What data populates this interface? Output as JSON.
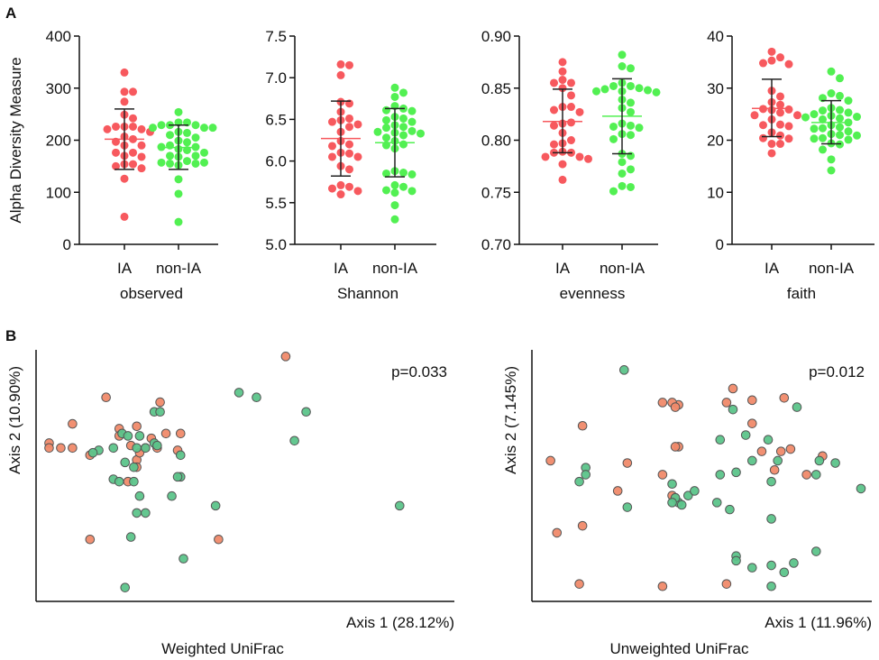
{
  "panel_labels": {
    "a": "A",
    "b": "B"
  },
  "colors": {
    "ia": "#f7595e",
    "nonia": "#52f052",
    "pcoa_ia": "#f08a6a",
    "pcoa_nonia": "#5cc48a",
    "axis": "#111111"
  },
  "chart_data": [
    {
      "type": "scatter",
      "title": "observed",
      "ylabel": "Alpha Diversity Measure",
      "categories": [
        "IA",
        "non-IA"
      ],
      "ylim": [
        0,
        400
      ],
      "yticks": [
        "0",
        "100",
        "200",
        "300",
        "400"
      ],
      "series": [
        {
          "name": "IA",
          "mean": 202,
          "sd_low": 144,
          "sd_high": 260,
          "values": [
            330,
            293,
            293,
            274,
            249,
            242,
            226,
            226,
            226,
            221,
            221,
            216,
            207,
            202,
            197,
            190,
            190,
            176,
            176,
            170,
            168,
            154,
            154,
            150,
            146,
            126,
            53
          ]
        },
        {
          "name": "non-IA",
          "mean": 186,
          "sd_low": 144,
          "sd_high": 229,
          "values": [
            254,
            234,
            234,
            229,
            229,
            229,
            224,
            224,
            224,
            216,
            214,
            210,
            205,
            199,
            196,
            190,
            187,
            187,
            183,
            181,
            176,
            170,
            170,
            168,
            160,
            157,
            157,
            155,
            155,
            152,
            125,
            97,
            43
          ]
        }
      ]
    },
    {
      "type": "scatter",
      "title": "Shannon",
      "categories": [
        "IA",
        "non-IA"
      ],
      "ylim": [
        5.0,
        7.5
      ],
      "yticks": [
        "5.0",
        "5.5",
        "6.0",
        "6.5",
        "7.0",
        "7.5"
      ],
      "series": [
        {
          "name": "IA",
          "mean": 6.27,
          "sd_low": 5.82,
          "sd_high": 6.72,
          "values": [
            7.16,
            7.15,
            7.03,
            6.71,
            6.69,
            6.59,
            6.51,
            6.49,
            6.47,
            6.44,
            6.41,
            6.35,
            6.24,
            6.2,
            6.18,
            6.1,
            6.09,
            6.05,
            6.05,
            5.94,
            5.9,
            5.71,
            5.69,
            5.67,
            5.64,
            5.6
          ]
        },
        {
          "name": "non-IA",
          "mean": 6.22,
          "sd_low": 5.81,
          "sd_high": 6.63,
          "values": [
            6.88,
            6.82,
            6.77,
            6.66,
            6.63,
            6.61,
            6.6,
            6.53,
            6.51,
            6.49,
            6.47,
            6.43,
            6.41,
            6.4,
            6.36,
            6.35,
            6.34,
            6.33,
            6.31,
            6.28,
            6.24,
            6.2,
            6.19,
            6.15,
            5.88,
            5.86,
            5.85,
            5.84,
            5.71,
            5.69,
            5.65,
            5.64,
            5.62,
            5.47,
            5.3
          ]
        }
      ]
    },
    {
      "type": "scatter",
      "title": "evenness",
      "categories": [
        "IA",
        "non-IA"
      ],
      "ylim": [
        0.7,
        0.9
      ],
      "yticks": [
        "0.70",
        "0.75",
        "0.80",
        "0.85",
        "0.90"
      ],
      "series": [
        {
          "name": "IA",
          "mean": 0.818,
          "sd_low": 0.788,
          "sd_high": 0.849,
          "values": [
            0.875,
            0.866,
            0.858,
            0.855,
            0.855,
            0.85,
            0.843,
            0.832,
            0.832,
            0.829,
            0.827,
            0.816,
            0.817,
            0.814,
            0.807,
            0.8,
            0.797,
            0.796,
            0.789,
            0.788,
            0.788,
            0.784,
            0.784,
            0.782,
            0.777,
            0.762
          ]
        },
        {
          "name": "non-IA",
          "mean": 0.823,
          "sd_low": 0.787,
          "sd_high": 0.859,
          "values": [
            0.882,
            0.871,
            0.869,
            0.855,
            0.852,
            0.852,
            0.85,
            0.849,
            0.848,
            0.847,
            0.847,
            0.846,
            0.839,
            0.836,
            0.831,
            0.827,
            0.816,
            0.814,
            0.813,
            0.812,
            0.806,
            0.805,
            0.801,
            0.787,
            0.785,
            0.779,
            0.772,
            0.768,
            0.756,
            0.755,
            0.751
          ]
        }
      ]
    },
    {
      "type": "scatter",
      "title": "faith",
      "categories": [
        "IA",
        "non-IA"
      ],
      "ylim": [
        0,
        40
      ],
      "yticks": [
        "0",
        "10",
        "20",
        "30",
        "40"
      ],
      "series": [
        {
          "name": "IA",
          "mean": 26.1,
          "sd_low": 20.7,
          "sd_high": 31.7,
          "values": [
            37.0,
            35.9,
            35.3,
            34.8,
            34.6,
            29.5,
            28.4,
            27.3,
            26.8,
            26.0,
            25.9,
            25.8,
            25.3,
            24.8,
            24.8,
            24.0,
            23.0,
            22.9,
            22.7,
            21.5,
            20.9,
            20.4,
            20.3,
            19.3,
            19.3,
            17.5
          ]
        },
        {
          "name": "non-IA",
          "mean": 23.4,
          "sd_low": 19.3,
          "sd_high": 27.6,
          "values": [
            33.2,
            31.9,
            29.0,
            28.5,
            28.1,
            27.6,
            26.2,
            25.8,
            25.7,
            25.3,
            25.0,
            24.7,
            24.5,
            24.4,
            24.2,
            24.0,
            23.4,
            22.9,
            22.5,
            22.3,
            22.2,
            21.7,
            21.2,
            21.0,
            20.9,
            20.4,
            20.3,
            20.1,
            19.4,
            19.2,
            18.2,
            16.3,
            14.2
          ]
        }
      ]
    },
    {
      "type": "scatter",
      "title": "Weighted UniFrac",
      "xlabel": "Axis 1 (28.12%)",
      "ylabel": "Axis 2 (10.90%)",
      "annotation": "p=0.033",
      "xlim": [
        0,
        1
      ],
      "ylim": [
        0,
        1
      ],
      "series": [
        {
          "name": "IA",
          "points": [
            [
              0.215,
              0.81
            ],
            [
              0.4,
              0.79
            ],
            [
              0.1,
              0.7
            ],
            [
              0.26,
              0.68
            ],
            [
              0.32,
              0.69
            ],
            [
              0.37,
              0.64
            ],
            [
              0.42,
              0.66
            ],
            [
              0.47,
              0.66
            ],
            [
              0.02,
              0.62
            ],
            [
              0.02,
              0.6
            ],
            [
              0.06,
              0.6
            ],
            [
              0.1,
              0.6
            ],
            [
              0.26,
              0.65
            ],
            [
              0.3,
              0.61
            ],
            [
              0.35,
              0.6
            ],
            [
              0.32,
              0.55
            ],
            [
              0.33,
              0.58
            ],
            [
              0.39,
              0.6
            ],
            [
              0.46,
              0.59
            ],
            [
              0.16,
              0.57
            ],
            [
              0.32,
              0.52
            ],
            [
              0.29,
              0.46
            ],
            [
              0.16,
              0.22
            ],
            [
              0.6,
              0.22
            ],
            [
              0.83,
              0.98
            ]
          ]
        },
        {
          "name": "non-IA",
          "points": [
            [
              0.38,
              0.75
            ],
            [
              0.4,
              0.75
            ],
            [
              0.27,
              0.66
            ],
            [
              0.29,
              0.65
            ],
            [
              0.33,
              0.65
            ],
            [
              0.38,
              0.62
            ],
            [
              0.19,
              0.59
            ],
            [
              0.24,
              0.6
            ],
            [
              0.17,
              0.58
            ],
            [
              0.32,
              0.6
            ],
            [
              0.35,
              0.6
            ],
            [
              0.39,
              0.61
            ],
            [
              0.47,
              0.57
            ],
            [
              0.28,
              0.54
            ],
            [
              0.31,
              0.52
            ],
            [
              0.24,
              0.47
            ],
            [
              0.26,
              0.46
            ],
            [
              0.31,
              0.46
            ],
            [
              0.47,
              0.48
            ],
            [
              0.46,
              0.48
            ],
            [
              0.33,
              0.4
            ],
            [
              0.44,
              0.4
            ],
            [
              0.32,
              0.33
            ],
            [
              0.35,
              0.33
            ],
            [
              0.3,
              0.23
            ],
            [
              0.48,
              0.14
            ],
            [
              0.28,
              0.02
            ],
            [
              0.67,
              0.83
            ],
            [
              0.73,
              0.81
            ],
            [
              0.9,
              0.75
            ],
            [
              0.86,
              0.63
            ],
            [
              0.59,
              0.36
            ],
            [
              1.22,
              0.36
            ]
          ]
        }
      ]
    },
    {
      "type": "scatter",
      "title": "Unweighted UniFrac",
      "xlabel": "Axis 1 (11.96%)",
      "ylabel": "Axis 2 (7.145%)",
      "annotation": "p=0.012",
      "xlim": [
        0,
        1
      ],
      "ylim": [
        0,
        1
      ],
      "series": [
        {
          "name": "IA",
          "points": [
            [
              0.38,
              0.82
            ],
            [
              0.43,
              0.81
            ],
            [
              0.13,
              0.72
            ],
            [
              0.43,
              0.63
            ],
            [
              0.41,
              0.82
            ],
            [
              0.58,
              0.82
            ],
            [
              0.03,
              0.57
            ],
            [
              0.27,
              0.56
            ],
            [
              0.38,
              0.51
            ],
            [
              0.24,
              0.44
            ],
            [
              0.41,
              0.42
            ],
            [
              0.42,
              0.41
            ],
            [
              0.05,
              0.26
            ],
            [
              0.13,
              0.29
            ],
            [
              0.12,
              0.04
            ],
            [
              0.38,
              0.03
            ],
            [
              0.6,
              0.88
            ],
            [
              0.66,
              0.83
            ],
            [
              0.76,
              0.84
            ],
            [
              0.42,
              0.8
            ],
            [
              0.66,
              0.73
            ],
            [
              0.69,
              0.61
            ],
            [
              0.75,
              0.61
            ],
            [
              0.78,
              0.62
            ],
            [
              0.88,
              0.59
            ],
            [
              0.73,
              0.53
            ],
            [
              0.83,
              0.51
            ],
            [
              0.42,
              0.63
            ],
            [
              0.58,
              0.04
            ]
          ]
        },
        {
          "name": "non-IA",
          "points": [
            [
              0.26,
              0.96
            ],
            [
              0.14,
              0.54
            ],
            [
              0.14,
              0.51
            ],
            [
              0.12,
              0.48
            ],
            [
              0.43,
              0.39
            ],
            [
              0.27,
              0.37
            ],
            [
              0.42,
              0.41
            ],
            [
              0.41,
              0.39
            ],
            [
              0.44,
              0.38
            ],
            [
              0.46,
              0.42
            ],
            [
              0.41,
              0.47
            ],
            [
              0.6,
              0.79
            ],
            [
              0.8,
              0.8
            ],
            [
              0.56,
              0.66
            ],
            [
              0.71,
              0.66
            ],
            [
              0.64,
              0.68
            ],
            [
              0.66,
              0.57
            ],
            [
              0.74,
              0.57
            ],
            [
              0.87,
              0.57
            ],
            [
              0.92,
              0.56
            ],
            [
              0.72,
              0.48
            ],
            [
              0.56,
              0.51
            ],
            [
              0.61,
              0.52
            ],
            [
              0.86,
              0.51
            ],
            [
              0.48,
              0.44
            ],
            [
              0.55,
              0.39
            ],
            [
              0.59,
              0.36
            ],
            [
              0.72,
              0.32
            ],
            [
              1.0,
              0.45
            ],
            [
              0.86,
              0.18
            ],
            [
              0.79,
              0.13
            ],
            [
              0.72,
              0.12
            ],
            [
              0.61,
              0.16
            ],
            [
              0.61,
              0.14
            ],
            [
              0.66,
              0.11
            ],
            [
              0.76,
              0.09
            ],
            [
              0.72,
              0.03
            ]
          ]
        }
      ]
    }
  ]
}
